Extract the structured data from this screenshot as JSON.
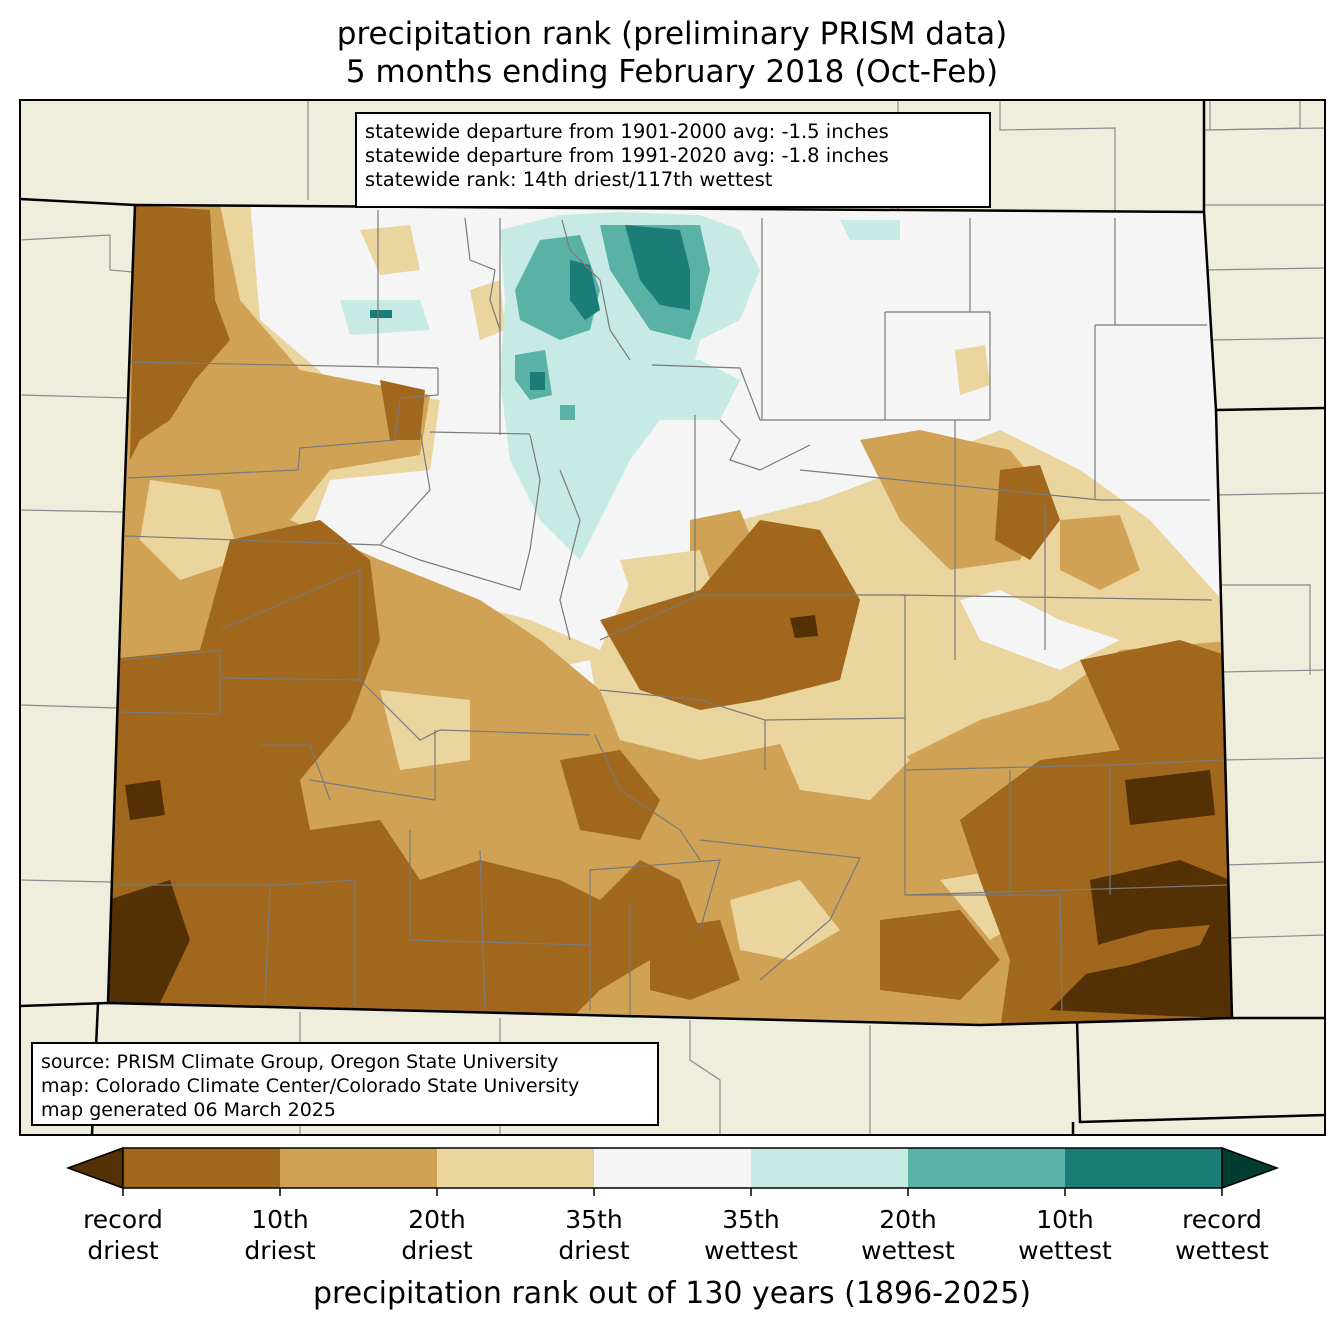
{
  "title": {
    "line1": "precipitation rank (preliminary PRISM data)",
    "line2": "5 months ending February 2018 (Oct-Feb)"
  },
  "stats_box": {
    "line1": "statewide departure from 1901-2000 avg: -1.5 inches",
    "line2": "statewide departure from 1991-2020 avg: -1.8 inches",
    "line3": "statewide rank: 14th driest/117th wettest"
  },
  "source_box": {
    "line1": "source: PRISM Climate Group, Oregon State University",
    "line2": "map: Colorado Climate Center/Colorado State University",
    "line3": "map generated 06 March 2025"
  },
  "colorbar": {
    "label": "precipitation rank out of 130 years (1896-2025)",
    "ticks": [
      {
        "l1": "record",
        "l2": "driest"
      },
      {
        "l1": "10th",
        "l2": "driest"
      },
      {
        "l1": "20th",
        "l2": "driest"
      },
      {
        "l1": "35th",
        "l2": "driest"
      },
      {
        "l1": "35th",
        "l2": "wettest"
      },
      {
        "l1": "20th",
        "l2": "wettest"
      },
      {
        "l1": "10th",
        "l2": "wettest"
      },
      {
        "l1": "record",
        "l2": "wettest"
      }
    ],
    "colors": {
      "below_record_driest": "#543005",
      "record_to_10th_driest": "#a0671d",
      "10th_to_20th_driest": "#cfa256",
      "20th_to_35th_driest": "#ebd59f",
      "near_normal": "#f4f5f4",
      "20th_to_35th_wettest": "#c7eae5",
      "10th_to_20th_wettest": "#5ab1a6",
      "record_to_10th_wettest": "#1a7d77",
      "above_record_wettest": "#003c30"
    }
  },
  "map_colors": {
    "land_outside": "#efeedc",
    "county_lines": "#808080",
    "state_lines": "#000000"
  }
}
